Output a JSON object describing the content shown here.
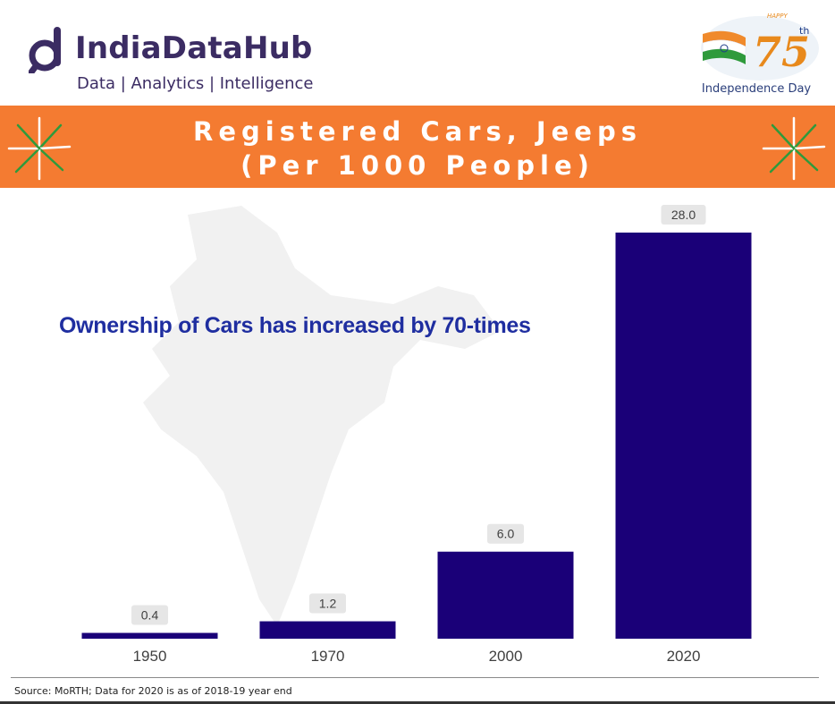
{
  "logo": {
    "name": "IndiaDataHub",
    "tagline": "Data | Analytics | Intelligence",
    "brand_color": "#3b2c63"
  },
  "badge": {
    "happy": "HAPPY",
    "number": "75",
    "suffix": "th",
    "caption": "Independence Day",
    "icon": "independence-day-75-emblem"
  },
  "banner": {
    "line1": "Registered Cars, Jeeps",
    "line2": "(Per 1000 People)",
    "color": "#f47b31"
  },
  "annotation": "Ownership of Cars has increased by 70-times",
  "source": "Source: MoRTH; Data for 2020 is as of 2018-19 year end",
  "chart_data": {
    "type": "bar",
    "categories": [
      "1950",
      "1970",
      "2000",
      "2020"
    ],
    "values": [
      0.4,
      1.2,
      6.0,
      28.0
    ],
    "value_labels": [
      "0.4",
      "1.2",
      "6.0",
      "28.0"
    ],
    "ylim": [
      0,
      28.0
    ],
    "bar_color": "#1a0078",
    "grid": false,
    "legend": "none"
  }
}
